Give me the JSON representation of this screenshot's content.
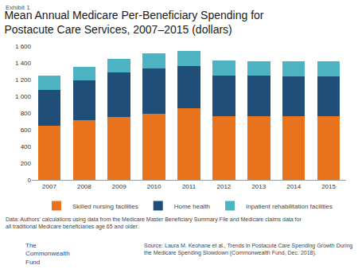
{
  "chart_data": {
    "type": "bar",
    "title": "Mean Annual Medicare Per-Beneficiary Spending for Postacute Care Services, 2007–2015 (dollars)",
    "categories": [
      "2007",
      "2008",
      "2009",
      "2010",
      "2011",
      "2012",
      "2013",
      "2014",
      "2015"
    ],
    "series": [
      {
        "name": "Skilled nursing facilities",
        "color": "#E8731C",
        "values": [
          650,
          710,
          750,
          790,
          860,
          760,
          760,
          760,
          760
        ]
      },
      {
        "name": "Home health",
        "color": "#1F4E79",
        "values": [
          430,
          480,
          535,
          545,
          505,
          490,
          485,
          475,
          480
        ]
      },
      {
        "name": "Inpatient rehabilitation facilities",
        "color": "#4BB3C2",
        "values": [
          170,
          165,
          165,
          175,
          180,
          175,
          175,
          180,
          180
        ]
      }
    ],
    "stacked": true,
    "ylim": [
      0,
      1600
    ],
    "yticks": [
      0,
      200,
      400,
      600,
      800,
      {
        "value": 1000,
        "label": "1 000"
      },
      {
        "value": 1200,
        "label": "1 200"
      },
      {
        "value": 1400,
        "label": "1 400"
      },
      {
        "value": 1600,
        "label": "1 600"
      }
    ],
    "grid": false,
    "legend": "bottom",
    "data_labels": false,
    "annotations": [
      {
        "text": "Exhibit 1"
      },
      {
        "text": "Data: Authors' calculations using data from the Medicare Master Beneficiary Summary File and Medicare claims data for all traditional Medicare beneficiaries age 65 and older."
      },
      {
        "text": "Source: Laura M. Keohane et al., Trends in Postacute Care Spending Growth During the Medicare Spending Slowdown (Commonwealth Fund, Dec. 2018)."
      },
      {
        "text": "The Commonwealth Fund"
      }
    ]
  }
}
